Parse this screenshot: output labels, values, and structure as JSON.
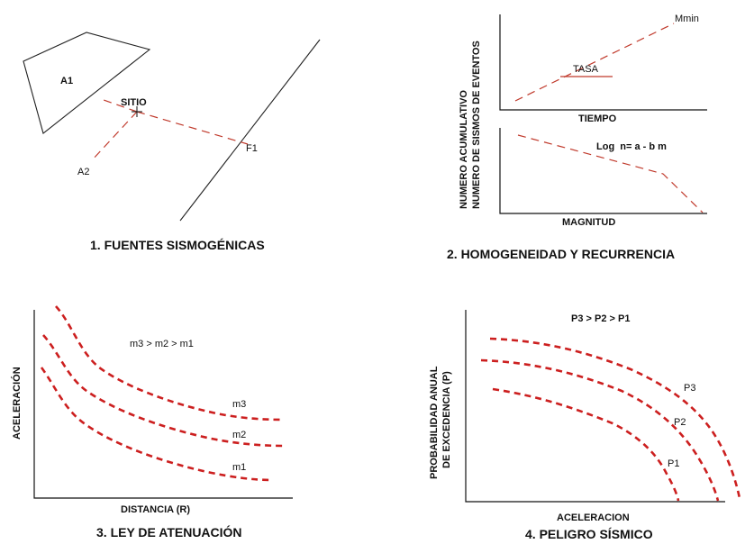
{
  "panel1": {
    "caption": "1. FUENTES SISMOGÉNICAS",
    "label_a1": "A1",
    "label_sitio": "SITIO",
    "label_a2": "A2",
    "label_f1": "F1"
  },
  "panel2": {
    "caption": "2. HOMOGENEIDAD Y RECURRENCIA",
    "ylabel_line1": "NUMERO ACUMULATIVO",
    "ylabel_line2": "NUMERO DE SISMOS DE EVENTOS",
    "top_xlabel": "TIEMPO",
    "label_mmin": "Mmin",
    "label_tasa": "TASA",
    "bottom_xlabel": "MAGNITUD",
    "equation": "Log  n= a - b m"
  },
  "panel3": {
    "caption": "3. LEY DE ATENUACIÓN",
    "ylabel": "ACELERACIÓN",
    "xlabel": "DISTANCIA (R)",
    "relation": "m3 > m2 > m1",
    "curves": [
      "m3",
      "m2",
      "m1"
    ]
  },
  "panel4": {
    "caption": "4. PELIGRO SÍSMICO",
    "ylabel_line1": "PROBABILIDAD ANUAL",
    "ylabel_line2": "DE EXCEDENCIA (P)",
    "xlabel": "ACELERACION",
    "relation": "P3 > P2 > P1",
    "curves": [
      "P3",
      "P2",
      "P1"
    ]
  },
  "colors": {
    "curve": "#cc1f1f",
    "axis": "#111111"
  }
}
